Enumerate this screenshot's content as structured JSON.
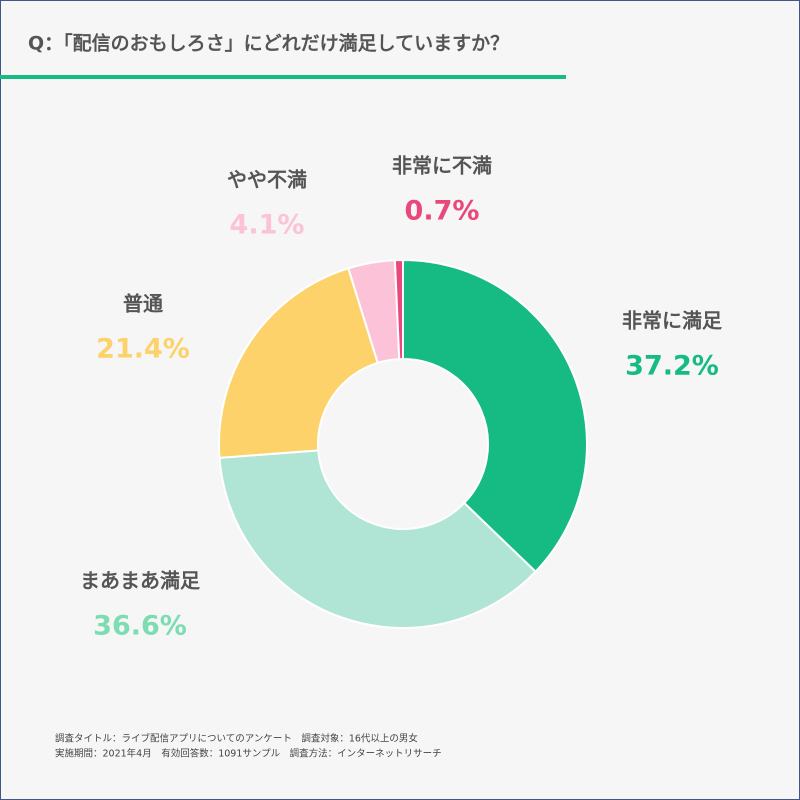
{
  "chart_data": {
    "type": "pie",
    "title": "Q：「配信のおもしろさ」にどれだけ満足していますか？",
    "categories": [
      "非常に満足",
      "まあまあ満足",
      "普通",
      "やや不満",
      "非常に不満"
    ],
    "values": [
      37.2,
      36.6,
      21.4,
      4.1,
      0.7
    ],
    "value_labels": [
      "37.2%",
      "36.6%",
      "21.4%",
      "4.1%",
      "0.7%"
    ],
    "colors": [
      "#16bb83",
      "#b0e5d5",
      "#fdd26b",
      "#fcc3d8",
      "#e9487a"
    ],
    "label_colors": [
      "#16bb83",
      "#7ddcb2",
      "#fdd26b",
      "#fcc3d8",
      "#e9487a"
    ],
    "donut": true,
    "notes": [
      "調査タイトル：ライブ配信アプリについてのアンケート　調査対象：16代以上の男女",
      "実施期間：2021年4月　有効回答数：1091サンプル　調査方法：インターネットリサーチ"
    ]
  }
}
